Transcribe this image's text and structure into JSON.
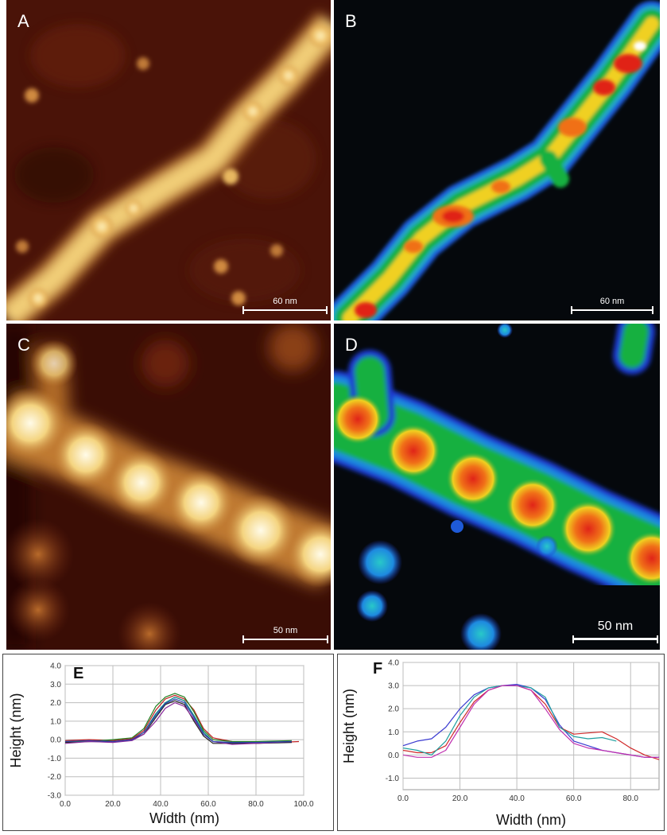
{
  "panels": {
    "a": {
      "label": "A",
      "scale": "60 nm"
    },
    "b": {
      "label": "B",
      "scale": "60 nm"
    },
    "c": {
      "label": "C",
      "scale": "50 nm"
    },
    "d": {
      "label": "D",
      "scale": "50 nm"
    }
  },
  "colors": {
    "afm_dark": "#3a0d05",
    "afm_mid": "#a85a1e",
    "afm_bright": "#fff4c0",
    "map_black": "#05080c",
    "map_blue": "#1e5ad8",
    "map_green": "#18b040",
    "map_red": "#e02418"
  },
  "chart_data": [
    {
      "panel": "E",
      "type": "line",
      "title": "E",
      "xlabel": "Width (nm)",
      "ylabel": "Height (nm)",
      "xlim": [
        0,
        100
      ],
      "ylim": [
        -3.0,
        4.0
      ],
      "xticks": [
        "0.0",
        "20.0",
        "40.0",
        "60.0",
        "80.0",
        "100.0"
      ],
      "yticks": [
        "4.0",
        "3.0",
        "2.0",
        "1.0",
        "0.0",
        "-1.0",
        "-2.0",
        "-3.0"
      ],
      "grid": true,
      "series": [
        {
          "color": "#008080",
          "x": [
            0,
            10,
            20,
            28,
            33,
            38,
            42,
            46,
            50,
            54,
            58,
            62,
            70,
            80,
            95
          ],
          "y": [
            -0.1,
            -0.05,
            -0.1,
            0.0,
            0.4,
            1.4,
            2.0,
            2.3,
            2.1,
            1.3,
            0.4,
            -0.1,
            -0.2,
            -0.15,
            -0.1
          ]
        },
        {
          "color": "#c02020",
          "x": [
            0,
            10,
            20,
            28,
            33,
            38,
            42,
            46,
            50,
            54,
            58,
            62,
            70,
            80,
            98
          ],
          "y": [
            -0.05,
            0.0,
            -0.05,
            0.05,
            0.5,
            1.6,
            2.2,
            2.4,
            2.2,
            1.6,
            0.6,
            0.1,
            -0.1,
            -0.2,
            -0.1
          ]
        },
        {
          "color": "#202020",
          "x": [
            0,
            10,
            20,
            28,
            33,
            38,
            42,
            46,
            50,
            54,
            58,
            62,
            70,
            80,
            95
          ],
          "y": [
            -0.15,
            -0.1,
            -0.1,
            0.0,
            0.3,
            1.2,
            1.9,
            2.1,
            1.9,
            1.0,
            0.2,
            -0.2,
            -0.2,
            -0.2,
            -0.15
          ]
        },
        {
          "color": "#208020",
          "x": [
            0,
            10,
            20,
            28,
            33,
            38,
            42,
            46,
            50,
            54,
            58,
            62,
            70,
            80,
            95
          ],
          "y": [
            -0.1,
            -0.1,
            0.0,
            0.1,
            0.6,
            1.8,
            2.3,
            2.5,
            2.3,
            1.5,
            0.5,
            0.0,
            -0.1,
            -0.1,
            -0.05
          ]
        },
        {
          "color": "#8a2a9a",
          "x": [
            0,
            10,
            20,
            28,
            33,
            38,
            42,
            46,
            50,
            54,
            58,
            62,
            70,
            80,
            95
          ],
          "y": [
            -0.2,
            -0.1,
            -0.15,
            -0.05,
            0.3,
            1.0,
            1.7,
            2.0,
            1.8,
            1.1,
            0.3,
            -0.1,
            -0.25,
            -0.2,
            -0.1
          ]
        },
        {
          "color": "#3040b0",
          "x": [
            0,
            10,
            20,
            28,
            33,
            38,
            42,
            46,
            50,
            54,
            58,
            62,
            70,
            80,
            95
          ],
          "y": [
            -0.1,
            -0.05,
            -0.1,
            0.0,
            0.4,
            1.3,
            1.95,
            2.2,
            2.0,
            1.2,
            0.3,
            -0.1,
            -0.15,
            -0.15,
            -0.1
          ]
        }
      ]
    },
    {
      "panel": "F",
      "type": "line",
      "title": "F",
      "xlabel": "Width (nm)",
      "ylabel": "Height (nm)",
      "xlim": [
        0,
        90
      ],
      "ylim": [
        -1.5,
        4.0
      ],
      "xticks": [
        "0.0",
        "20.0",
        "40.0",
        "60.0",
        "80.0"
      ],
      "yticks": [
        "4.0",
        "3.0",
        "2.0",
        "1.0",
        "0.0",
        "-1.0"
      ],
      "grid": true,
      "series": [
        {
          "color": "#3a3ad0",
          "x": [
            0,
            5,
            10,
            15,
            20,
            25,
            30,
            35,
            40,
            45,
            50,
            55,
            60,
            65,
            70,
            75,
            80,
            85,
            90
          ],
          "y": [
            0.4,
            0.6,
            0.7,
            1.2,
            2.0,
            2.6,
            2.9,
            3.0,
            3.05,
            2.9,
            2.4,
            1.3,
            0.6,
            0.4,
            0.2,
            0.1,
            0.0,
            -0.1,
            -0.1
          ]
        },
        {
          "color": "#d02a2a",
          "x": [
            0,
            5,
            10,
            15,
            20,
            25,
            30,
            35,
            40,
            45,
            50,
            55,
            60,
            65,
            70,
            75,
            80,
            85,
            90
          ],
          "y": [
            0.2,
            0.1,
            0.1,
            0.4,
            1.4,
            2.3,
            2.8,
            3.0,
            3.0,
            2.8,
            2.2,
            1.2,
            0.9,
            0.95,
            1.0,
            0.7,
            0.3,
            0.0,
            -0.2
          ]
        },
        {
          "color": "#20a0a0",
          "x": [
            0,
            5,
            10,
            15,
            20,
            25,
            30,
            35,
            40,
            45,
            50,
            55,
            60,
            65,
            70,
            75
          ],
          "y": [
            0.3,
            0.2,
            0.0,
            0.6,
            1.7,
            2.5,
            2.9,
            3.0,
            3.0,
            2.9,
            2.5,
            1.2,
            0.8,
            0.7,
            0.75,
            0.6
          ]
        },
        {
          "color": "#c030b0",
          "x": [
            0,
            5,
            10,
            15,
            20,
            25,
            30,
            35,
            40,
            45,
            50,
            55,
            60,
            65,
            70,
            75,
            80,
            85,
            90
          ],
          "y": [
            0.0,
            -0.1,
            -0.1,
            0.2,
            1.2,
            2.2,
            2.8,
            3.0,
            3.0,
            2.8,
            2.0,
            1.1,
            0.5,
            0.3,
            0.2,
            0.1,
            0.0,
            -0.1,
            -0.1
          ]
        }
      ]
    }
  ]
}
